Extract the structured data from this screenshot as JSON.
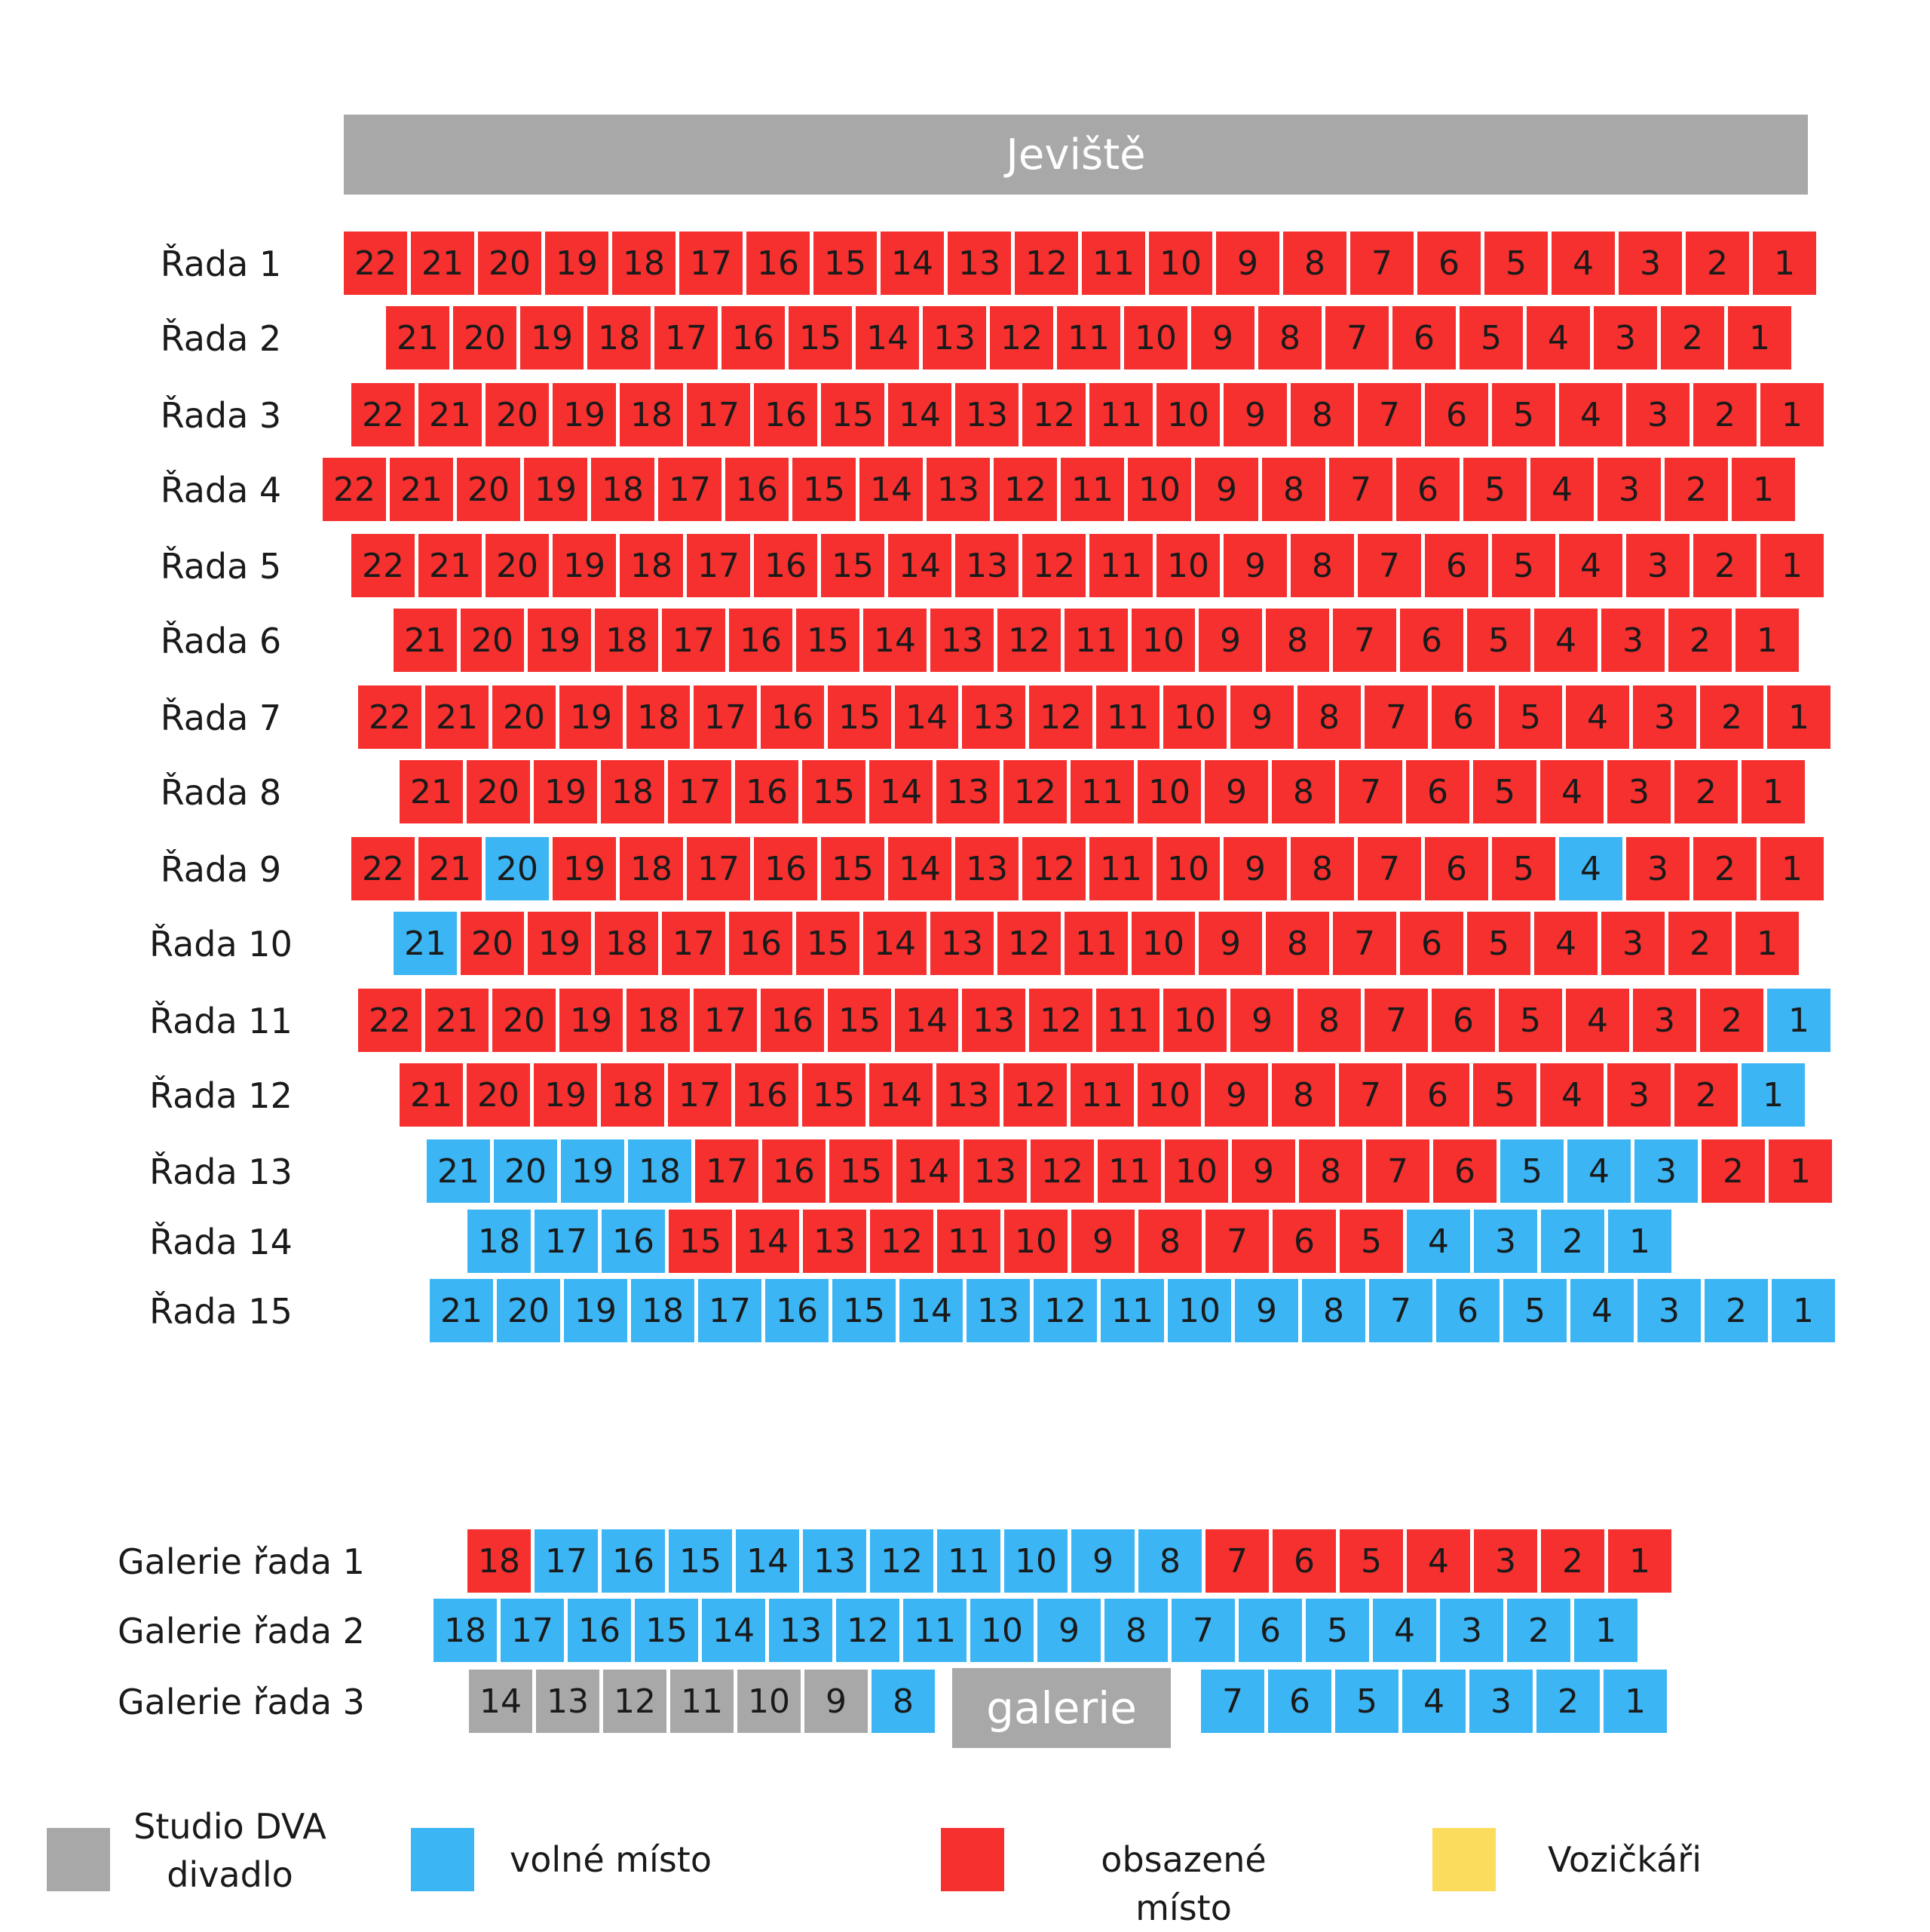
{
  "stage_label": "Jeviště",
  "galerie_label": "galerie",
  "colors": {
    "occupied": "#f5302f",
    "free": "#3cb5f4",
    "studio": "#a8a8a8",
    "wheelchair": "#fcdc5c"
  },
  "legend": {
    "studio": {
      "line1": "Studio DVA",
      "line2": "divadlo"
    },
    "free": "volné místo",
    "occupied": "obsazené místo",
    "wheelchair": "Vozičkáři"
  },
  "rows": [
    {
      "label": "Řada 1",
      "seats": 22,
      "free": []
    },
    {
      "label": "Řada 2",
      "seats": 21,
      "free": []
    },
    {
      "label": "Řada 3",
      "seats": 22,
      "free": []
    },
    {
      "label": "Řada 4",
      "seats": 22,
      "free": []
    },
    {
      "label": "Řada 5",
      "seats": 22,
      "free": []
    },
    {
      "label": "Řada 6",
      "seats": 21,
      "free": []
    },
    {
      "label": "Řada 7",
      "seats": 22,
      "free": []
    },
    {
      "label": "Řada 8",
      "seats": 21,
      "free": []
    },
    {
      "label": "Řada 9",
      "seats": 22,
      "free": [
        20,
        4
      ]
    },
    {
      "label": "Řada 10",
      "seats": 21,
      "free": [
        21
      ]
    },
    {
      "label": "Řada 11",
      "seats": 22,
      "free": [
        1
      ]
    },
    {
      "label": "Řada 12",
      "seats": 21,
      "free": [
        1
      ]
    },
    {
      "label": "Řada 13",
      "seats": 21,
      "free": [
        21,
        20,
        19,
        18,
        5,
        4,
        3
      ]
    },
    {
      "label": "Řada 14",
      "seats": 18,
      "free": [
        18,
        17,
        16,
        4,
        3,
        2,
        1
      ]
    },
    {
      "label": "Řada 15",
      "seats": 21,
      "free": [
        21,
        20,
        19,
        18,
        17,
        16,
        15,
        14,
        13,
        12,
        11,
        10,
        9,
        8,
        7,
        6,
        5,
        4,
        3,
        2,
        1
      ]
    }
  ],
  "galerie_rows": [
    {
      "label": "Galerie řada 1",
      "seats": [
        18,
        17,
        16,
        15,
        14,
        13,
        12,
        11,
        10,
        9,
        8,
        7,
        6,
        5,
        4,
        3,
        2,
        1
      ],
      "free": [
        17,
        16,
        15,
        14,
        13,
        12,
        11,
        10,
        9,
        8
      ],
      "studio": []
    },
    {
      "label": "Galerie řada 2",
      "seats": [
        18,
        17,
        16,
        15,
        14,
        13,
        12,
        11,
        10,
        9,
        8,
        7,
        6,
        5,
        4,
        3,
        2,
        1
      ],
      "free": [
        18,
        17,
        16,
        15,
        14,
        13,
        12,
        11,
        10,
        9,
        8,
        7,
        6,
        5,
        4,
        3,
        2,
        1
      ],
      "studio": []
    },
    {
      "label": "Galerie řada 3",
      "seats": [
        14,
        13,
        12,
        11,
        10,
        9,
        8,
        7,
        6,
        5,
        4,
        3,
        2,
        1
      ],
      "free": [
        8,
        7,
        6,
        5,
        4,
        3,
        2,
        1
      ],
      "studio": [
        14,
        13,
        12,
        11,
        10,
        9
      ]
    }
  ]
}
